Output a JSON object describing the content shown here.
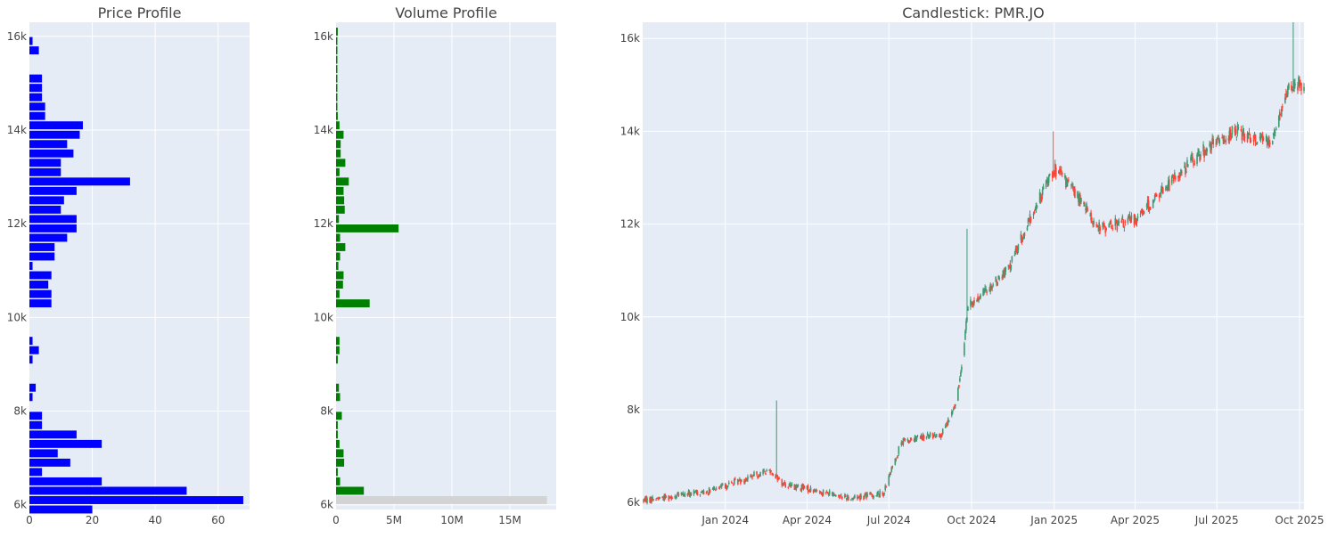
{
  "chart_data": [
    {
      "type": "bar",
      "orientation": "horizontal",
      "title": "Price Profile",
      "bar_color": "#0000ff",
      "xlim": [
        0,
        70
      ],
      "ylim": [
        5900,
        16300
      ],
      "x_ticks": [
        "0",
        "20",
        "40",
        "60"
      ],
      "x_tick_values": [
        0,
        20,
        40,
        60
      ],
      "y_ticks": [
        "6k",
        "8k",
        "10k",
        "12k",
        "14k",
        "16k"
      ],
      "y_tick_values": [
        6000,
        8000,
        10000,
        12000,
        14000,
        16000
      ],
      "grid": true,
      "price_levels": [
        5900,
        6100,
        6300,
        6500,
        6700,
        6900,
        7100,
        7300,
        7500,
        7700,
        7900,
        8300,
        8500,
        9100,
        9300,
        9500,
        10300,
        10500,
        10700,
        10900,
        11100,
        11300,
        11500,
        11700,
        11900,
        12100,
        12300,
        12500,
        12700,
        12900,
        13100,
        13300,
        13500,
        13700,
        13900,
        14100,
        14300,
        14500,
        14700,
        14900,
        15100,
        15700,
        15900
      ],
      "counts": [
        20,
        68,
        50,
        23,
        4,
        13,
        9,
        23,
        15,
        4,
        4,
        1,
        2,
        1,
        3,
        1,
        7,
        7,
        6,
        7,
        1,
        8,
        8,
        12,
        15,
        15,
        10,
        11,
        15,
        32,
        10,
        10,
        14,
        12,
        16,
        17,
        5,
        5,
        4,
        4,
        4,
        3,
        1
      ]
    },
    {
      "type": "bar",
      "orientation": "horizontal",
      "title": "Volume Profile",
      "bar_color": "#008000",
      "highlight_color": "#d3d3d3",
      "xlim": [
        0,
        19000000
      ],
      "ylim": [
        5900,
        16300
      ],
      "x_ticks": [
        "0",
        "5M",
        "10M",
        "15M"
      ],
      "x_tick_values": [
        0,
        5000000,
        10000000,
        15000000
      ],
      "y_ticks": [
        "6k",
        "8k",
        "10k",
        "12k",
        "14k",
        "16k"
      ],
      "y_tick_values": [
        6000,
        8000,
        10000,
        12000,
        14000,
        16000
      ],
      "grid": true,
      "price_levels": [
        6100,
        6300,
        6500,
        6700,
        6900,
        7100,
        7300,
        7500,
        7700,
        7900,
        8300,
        8500,
        9100,
        9300,
        9500,
        10300,
        10500,
        10700,
        10900,
        11100,
        11300,
        11500,
        11700,
        11900,
        12100,
        12300,
        12500,
        12700,
        12900,
        13100,
        13300,
        13500,
        13700,
        13900,
        14100,
        14300,
        14500,
        14700,
        14900,
        15100,
        15300,
        15500,
        15700,
        15900,
        16100
      ],
      "volumes": [
        18200000,
        2400000,
        350000,
        150000,
        700000,
        650000,
        300000,
        150000,
        150000,
        500000,
        350000,
        250000,
        150000,
        300000,
        300000,
        2900000,
        300000,
        600000,
        650000,
        200000,
        350000,
        800000,
        350000,
        5400000,
        250000,
        750000,
        700000,
        650000,
        1100000,
        300000,
        800000,
        400000,
        400000,
        650000,
        300000,
        150000,
        100000,
        100000,
        80000,
        80000,
        80000,
        60000,
        60000,
        40000,
        150000
      ],
      "highlight_index": 0
    },
    {
      "type": "candlestick",
      "title": "Candlestick: PMR.JO",
      "increasing_color": "#3d9970",
      "decreasing_color": "#ff4136",
      "x_start": "2023-10-01",
      "x_end": "2025-10-06",
      "ylim": [
        5850,
        16350
      ],
      "x_ticks": [
        "Jan 2024",
        "Apr 2024",
        "Jul 2024",
        "Oct 2024",
        "Jan 2025",
        "Apr 2025",
        "Jul 2025",
        "Oct 2025"
      ],
      "x_tick_dates": [
        "2024-01-01",
        "2024-04-01",
        "2024-07-01",
        "2024-10-01",
        "2025-01-01",
        "2025-04-01",
        "2025-07-01",
        "2025-10-01"
      ],
      "y_ticks": [
        "6k",
        "8k",
        "10k",
        "12k",
        "14k",
        "16k"
      ],
      "y_tick_values": [
        6000,
        8000,
        10000,
        12000,
        14000,
        16000
      ],
      "grid": true,
      "trend_anchors": [
        [
          "2023-10-01",
          6050
        ],
        [
          "2023-12-15",
          6250
        ],
        [
          "2024-02-20",
          6700
        ],
        [
          "2024-03-05",
          6400
        ],
        [
          "2024-05-20",
          6100
        ],
        [
          "2024-06-25",
          6200
        ],
        [
          "2024-07-15",
          7300
        ],
        [
          "2024-08-31",
          7500
        ],
        [
          "2024-09-15",
          8200
        ],
        [
          "2024-09-27",
          10200
        ],
        [
          "2024-11-10",
          11000
        ],
        [
          "2024-12-31",
          13200
        ],
        [
          "2025-01-20",
          12800
        ],
        [
          "2025-02-20",
          11900
        ],
        [
          "2025-03-31",
          12100
        ],
        [
          "2025-06-10",
          13500
        ],
        [
          "2025-07-20",
          14000
        ],
        [
          "2025-08-31",
          13800
        ],
        [
          "2025-09-20",
          15000
        ],
        [
          "2025-10-06",
          15000
        ]
      ],
      "spikes": [
        [
          "2024-02-27",
          8200
        ],
        [
          "2024-09-26",
          11900
        ],
        [
          "2024-12-31",
          14000
        ],
        [
          "2025-09-24",
          16400
        ]
      ]
    }
  ]
}
